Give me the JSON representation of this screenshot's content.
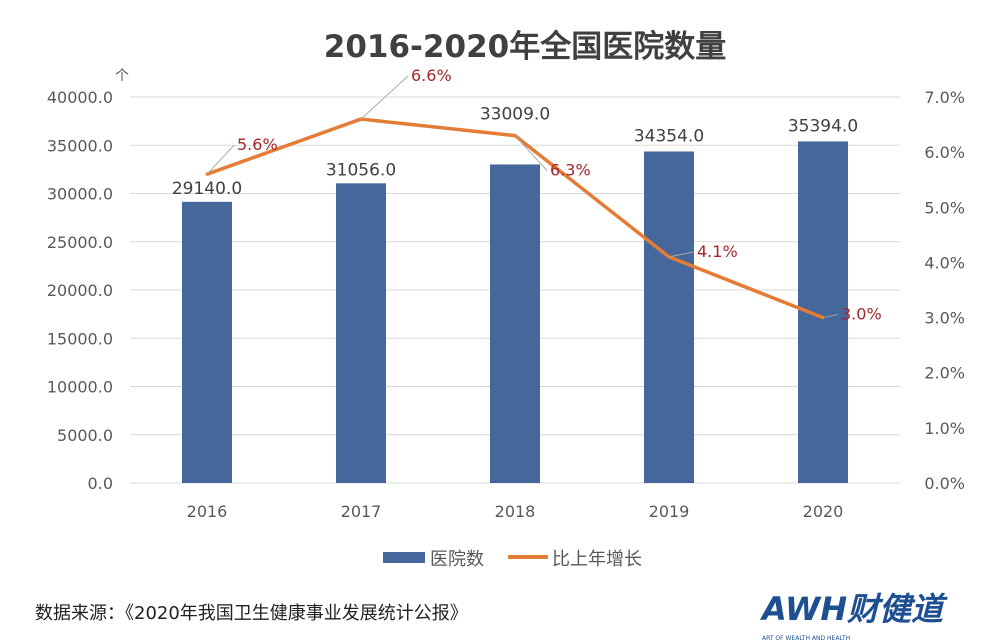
{
  "chart_data": {
    "type": "bar+line",
    "title": "2016-2020年全国医院数量",
    "ylabel_left": "个",
    "categories": [
      "2016",
      "2017",
      "2018",
      "2019",
      "2020"
    ],
    "series": [
      {
        "name": "医院数",
        "type": "bar",
        "axis": "left",
        "values": [
          29140.0,
          31056.0,
          33009.0,
          34354.0,
          35394.0
        ],
        "labels": [
          "29140.0",
          "31056.0",
          "33009.0",
          "34354.0",
          "35394.0"
        ],
        "color": "#46679b"
      },
      {
        "name": "比上年增长",
        "type": "line",
        "axis": "right",
        "values": [
          5.6,
          6.6,
          6.3,
          4.1,
          3.0
        ],
        "labels": [
          "5.6%",
          "6.6%",
          "6.3%",
          "4.1%",
          "3.0%"
        ],
        "color": "#e47c35"
      }
    ],
    "left_axis": {
      "range": [
        0,
        40000
      ],
      "ticks": [
        "0.0",
        "5000.0",
        "10000.0",
        "15000.0",
        "20000.0",
        "25000.0",
        "30000.0",
        "35000.0",
        "40000.0"
      ]
    },
    "right_axis": {
      "range": [
        0,
        7
      ],
      "ticks": [
        "0.0%",
        "1.0%",
        "2.0%",
        "3.0%",
        "4.0%",
        "5.0%",
        "6.0%",
        "7.0%"
      ]
    },
    "grid": true,
    "legend": "bottom"
  },
  "footer": {
    "source": "数据来源：《2020年我国卫生健康事业发展统计公报》",
    "logo_text": "AWH财健道",
    "logo_subtext": "ART OF WEALTH AND HEALTH"
  }
}
